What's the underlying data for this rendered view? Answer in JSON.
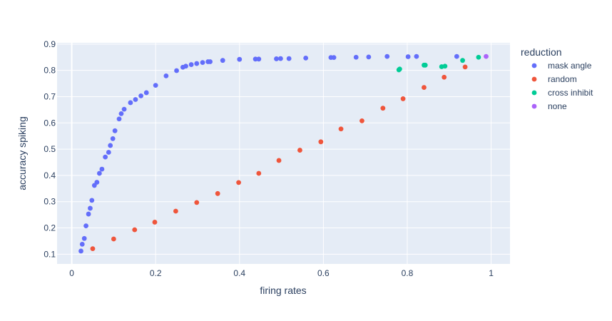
{
  "chart_data": {
    "type": "scatter",
    "title": "",
    "xlabel": "firing rates",
    "ylabel": "accuracy spiking",
    "xlim": [
      -0.035,
      1.045
    ],
    "ylim": [
      0.063,
      0.905
    ],
    "xticks": [
      0,
      0.2,
      0.4,
      0.6,
      0.8,
      1
    ],
    "xtick_labels": [
      "0",
      "0.2",
      "0.4",
      "0.6",
      "0.8",
      "1"
    ],
    "yticks": [
      0.1,
      0.2,
      0.3,
      0.4,
      0.5,
      0.6,
      0.7,
      0.8,
      0.9
    ],
    "ytick_labels": [
      "0.1",
      "0.2",
      "0.3",
      "0.4",
      "0.5",
      "0.6",
      "0.7",
      "0.8",
      "0.9"
    ],
    "grid": true,
    "legend_title": "reduction",
    "legend_position": "right",
    "plot_bgcolor": "#e5ecf6",
    "series": [
      {
        "name": "mask angle",
        "color": "#636efa",
        "points": [
          [
            0.022,
            0.112
          ],
          [
            0.025,
            0.138
          ],
          [
            0.03,
            0.16
          ],
          [
            0.034,
            0.208
          ],
          [
            0.04,
            0.253
          ],
          [
            0.044,
            0.275
          ],
          [
            0.048,
            0.305
          ],
          [
            0.054,
            0.362
          ],
          [
            0.06,
            0.374
          ],
          [
            0.066,
            0.408
          ],
          [
            0.072,
            0.424
          ],
          [
            0.08,
            0.47
          ],
          [
            0.088,
            0.488
          ],
          [
            0.092,
            0.514
          ],
          [
            0.098,
            0.54
          ],
          [
            0.103,
            0.57
          ],
          [
            0.113,
            0.615
          ],
          [
            0.118,
            0.635
          ],
          [
            0.125,
            0.652
          ],
          [
            0.14,
            0.677
          ],
          [
            0.152,
            0.689
          ],
          [
            0.165,
            0.703
          ],
          [
            0.178,
            0.715
          ],
          [
            0.2,
            0.743
          ],
          [
            0.225,
            0.779
          ],
          [
            0.25,
            0.799
          ],
          [
            0.265,
            0.812
          ],
          [
            0.272,
            0.816
          ],
          [
            0.285,
            0.822
          ],
          [
            0.298,
            0.826
          ],
          [
            0.312,
            0.83
          ],
          [
            0.325,
            0.833
          ],
          [
            0.33,
            0.833
          ],
          [
            0.36,
            0.838
          ],
          [
            0.4,
            0.842
          ],
          [
            0.438,
            0.843
          ],
          [
            0.446,
            0.843
          ],
          [
            0.488,
            0.844
          ],
          [
            0.498,
            0.845
          ],
          [
            0.518,
            0.845
          ],
          [
            0.558,
            0.847
          ],
          [
            0.618,
            0.849
          ],
          [
            0.625,
            0.849
          ],
          [
            0.678,
            0.85
          ],
          [
            0.708,
            0.851
          ],
          [
            0.752,
            0.853
          ],
          [
            0.802,
            0.852
          ],
          [
            0.822,
            0.853
          ],
          [
            0.918,
            0.853
          ]
        ]
      },
      {
        "name": "random",
        "color": "#ef553b",
        "points": [
          [
            0.05,
            0.121
          ],
          [
            0.1,
            0.158
          ],
          [
            0.15,
            0.193
          ],
          [
            0.198,
            0.222
          ],
          [
            0.248,
            0.264
          ],
          [
            0.298,
            0.297
          ],
          [
            0.348,
            0.331
          ],
          [
            0.398,
            0.373
          ],
          [
            0.446,
            0.408
          ],
          [
            0.494,
            0.457
          ],
          [
            0.544,
            0.496
          ],
          [
            0.594,
            0.528
          ],
          [
            0.642,
            0.577
          ],
          [
            0.692,
            0.608
          ],
          [
            0.742,
            0.656
          ],
          [
            0.79,
            0.692
          ],
          [
            0.84,
            0.735
          ],
          [
            0.888,
            0.774
          ],
          [
            0.938,
            0.813
          ]
        ]
      },
      {
        "name": "cross inhibit",
        "color": "#00cc96",
        "points": [
          [
            0.78,
            0.802
          ],
          [
            0.782,
            0.805
          ],
          [
            0.84,
            0.82
          ],
          [
            0.843,
            0.82
          ],
          [
            0.882,
            0.814
          ],
          [
            0.89,
            0.816
          ],
          [
            0.932,
            0.838
          ],
          [
            0.97,
            0.85
          ]
        ]
      },
      {
        "name": "none",
        "color": "#ab63fa",
        "points": [
          [
            0.988,
            0.853
          ]
        ]
      }
    ]
  }
}
